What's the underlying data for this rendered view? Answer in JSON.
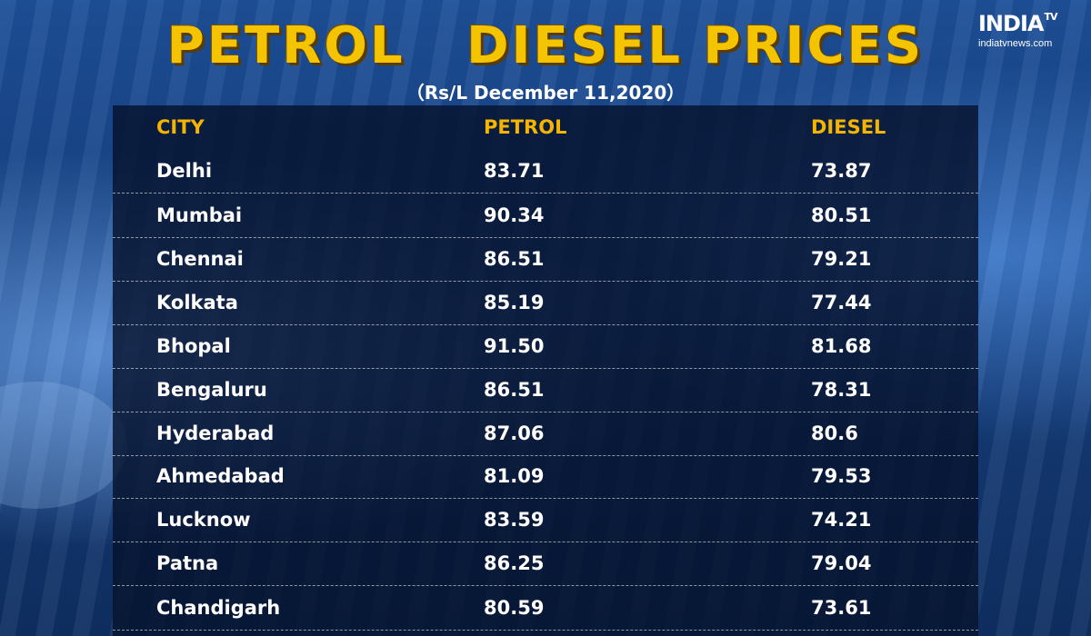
{
  "title": "PETROL   DIESEL PRICES",
  "subtitle": "（Rs/L December 11,2020）",
  "logo": {
    "brand": "INDIA",
    "tv": "TV",
    "site": "indiatvnews.com"
  },
  "colors": {
    "title": "#f5c400",
    "header": "#f5b400",
    "panel": "#06122d",
    "text": "#ffffff"
  },
  "table": {
    "headers": [
      "CITY",
      "PETROL",
      "DIESEL"
    ],
    "rows": [
      {
        "city": "Delhi",
        "petrol": "83.71",
        "diesel": "73.87"
      },
      {
        "city": "Mumbai",
        "petrol": "90.34",
        "diesel": "80.51"
      },
      {
        "city": "Chennai",
        "petrol": "86.51",
        "diesel": "79.21"
      },
      {
        "city": "Kolkata",
        "petrol": "85.19",
        "diesel": "77.44"
      },
      {
        "city": "Bhopal",
        "petrol": "91.50",
        "diesel": "81.68"
      },
      {
        "city": "Bengaluru",
        "petrol": "86.51",
        "diesel": "78.31"
      },
      {
        "city": "Hyderabad",
        "petrol": "87.06",
        "diesel": "80.6"
      },
      {
        "city": "Ahmedabad",
        "petrol": "81.09",
        "diesel": "79.53"
      },
      {
        "city": "Lucknow",
        "petrol": "83.59",
        "diesel": "74.21"
      },
      {
        "city": "Patna",
        "petrol": "86.25",
        "diesel": "79.04"
      },
      {
        "city": "Chandigarh",
        "petrol": "80.59",
        "diesel": "73.61"
      }
    ]
  }
}
